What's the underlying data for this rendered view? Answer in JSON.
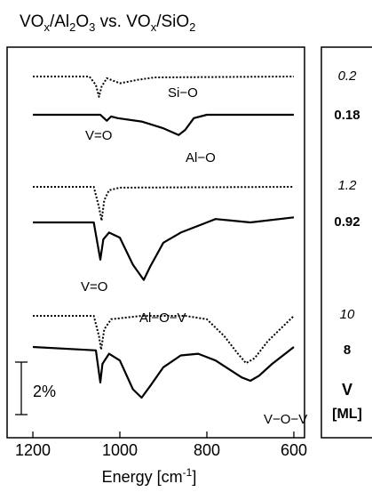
{
  "chart_data": {
    "type": "line",
    "title_parts": [
      {
        "t": "VO",
        "s": false
      },
      {
        "t": "x",
        "s": true
      },
      {
        "t": "/Al",
        "s": false
      },
      {
        "t": "2",
        "s": true
      },
      {
        "t": "O",
        "s": false
      },
      {
        "t": "3",
        "s": true
      },
      {
        "t": " vs. VO",
        "s": false
      },
      {
        "t": "x",
        "s": true
      },
      {
        "t": "/SiO",
        "s": false
      },
      {
        "t": "2",
        "s": true
      }
    ],
    "xlabel": "Energy [cm",
    "xlabel_sup": "-1",
    "xlabel_close": "]",
    "xlim": [
      1200,
      600
    ],
    "x_ticks": [
      "1200",
      "1000",
      "800",
      "600"
    ],
    "scale_bar_label": "2%",
    "loading_header": "V",
    "loading_unit": "[ML]",
    "loadings": [
      {
        "label": "0.2",
        "style": "italic"
      },
      {
        "label": "0.18",
        "style": "bold"
      },
      {
        "label": "1.2",
        "style": "italic"
      },
      {
        "label": "0.92",
        "style": "bold"
      },
      {
        "label": "10",
        "style": "italic"
      },
      {
        "label": "8",
        "style": "bold"
      }
    ],
    "annotations": [
      "Si-O",
      "V=O",
      "Al-O",
      "V=O",
      "Al-O-V",
      "V-O-V"
    ],
    "series": [
      {
        "support": "SiO2",
        "loading": "0.2",
        "dash": "dotted",
        "points": [
          [
            1200,
            0
          ],
          [
            1070,
            0
          ],
          [
            1055,
            -0.5
          ],
          [
            1048,
            -1.2
          ],
          [
            1042,
            -0.6
          ],
          [
            1030,
            -0.1
          ],
          [
            1000,
            -0.4
          ],
          [
            960,
            -0.2
          ],
          [
            920,
            -0.05
          ],
          [
            600,
            0
          ]
        ]
      },
      {
        "support": "Al2O3",
        "loading": "0.18",
        "dash": "solid",
        "points": [
          [
            1200,
            0
          ],
          [
            1045,
            0
          ],
          [
            1030,
            -0.35
          ],
          [
            1020,
            -0.1
          ],
          [
            1005,
            -0.2
          ],
          [
            950,
            -0.4
          ],
          [
            900,
            -0.8
          ],
          [
            865,
            -1.2
          ],
          [
            850,
            -0.9
          ],
          [
            830,
            -0.2
          ],
          [
            800,
            0
          ],
          [
            600,
            0
          ]
        ]
      },
      {
        "support": "SiO2",
        "loading": "1.2",
        "dash": "dotted",
        "points": [
          [
            1200,
            0
          ],
          [
            1060,
            0
          ],
          [
            1048,
            -1.2
          ],
          [
            1042,
            -2.0
          ],
          [
            1036,
            -0.8
          ],
          [
            1025,
            -0.2
          ],
          [
            1000,
            -0.05
          ],
          [
            600,
            0
          ]
        ]
      },
      {
        "support": "Al2O3",
        "loading": "0.92",
        "dash": "solid",
        "points": [
          [
            1200,
            0
          ],
          [
            1060,
            0
          ],
          [
            1045,
            -2.2
          ],
          [
            1038,
            -1.0
          ],
          [
            1025,
            -0.6
          ],
          [
            1000,
            -0.9
          ],
          [
            970,
            -2.5
          ],
          [
            945,
            -3.4
          ],
          [
            930,
            -2.6
          ],
          [
            900,
            -1.2
          ],
          [
            860,
            -0.6
          ],
          [
            800,
            0
          ],
          [
            780,
            0.2
          ],
          [
            700,
            0
          ],
          [
            600,
            0.3
          ]
        ]
      },
      {
        "support": "SiO2",
        "loading": "10",
        "dash": "dotted",
        "points": [
          [
            1200,
            0
          ],
          [
            1060,
            0
          ],
          [
            1048,
            -1.2
          ],
          [
            1043,
            -2.0
          ],
          [
            1036,
            -0.8
          ],
          [
            1020,
            -0.2
          ],
          [
            950,
            0
          ],
          [
            850,
            0
          ],
          [
            800,
            -0.2
          ],
          [
            760,
            -1.2
          ],
          [
            730,
            -2.2
          ],
          [
            710,
            -2.8
          ],
          [
            690,
            -2.5
          ],
          [
            660,
            -1.5
          ],
          [
            620,
            -0.5
          ],
          [
            600,
            0
          ]
        ]
      },
      {
        "support": "Al2O3",
        "loading": "8",
        "dash": "solid",
        "points": [
          [
            1200,
            0
          ],
          [
            1055,
            -0.2
          ],
          [
            1045,
            -2.1
          ],
          [
            1040,
            -1.0
          ],
          [
            1025,
            -0.4
          ],
          [
            1000,
            -0.8
          ],
          [
            970,
            -2.5
          ],
          [
            950,
            -3.0
          ],
          [
            930,
            -2.3
          ],
          [
            900,
            -1.2
          ],
          [
            860,
            -0.5
          ],
          [
            820,
            -0.4
          ],
          [
            800,
            -0.6
          ],
          [
            780,
            -0.8
          ],
          [
            750,
            -1.3
          ],
          [
            720,
            -1.8
          ],
          [
            700,
            -2.0
          ],
          [
            680,
            -1.7
          ],
          [
            650,
            -1.0
          ],
          [
            620,
            -0.4
          ],
          [
            600,
            0
          ]
        ]
      }
    ]
  }
}
